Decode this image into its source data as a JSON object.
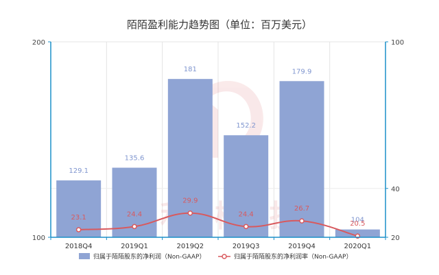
{
  "chart_data": {
    "type": "bar",
    "title": "陌陌盈利能力趋势图（单位：百万美元）",
    "categories": [
      "2018Q4",
      "2019Q1",
      "2019Q2",
      "2019Q3",
      "2019Q4",
      "2020Q1"
    ],
    "series": [
      {
        "name": "归属于陌陌股东的净利润（Non-GAAP）",
        "type": "bar",
        "axis": "left",
        "values": [
          129.1,
          135.6,
          181,
          152.2,
          179.9,
          104
        ],
        "labels": [
          "129.1",
          "135.6",
          "181",
          "152.2",
          "179.9",
          "104"
        ],
        "color": "#8fa4d4"
      },
      {
        "name": "归属于陌陌股东的净利润率（Non-GAAP）",
        "type": "line",
        "axis": "right",
        "smooth": true,
        "values": [
          23.1,
          24.4,
          29.9,
          24.4,
          26.7,
          20.5
        ],
        "labels": [
          "23.1",
          "24.4",
          "29.9",
          "24.4",
          "26.7",
          "20.5"
        ],
        "color": "#d9595d"
      }
    ],
    "y_left": {
      "ylim": [
        100,
        200
      ],
      "ticks": [
        "100",
        "200"
      ]
    },
    "y_right": {
      "ylim": [
        20,
        100
      ],
      "ticks": [
        "20",
        "40",
        "100"
      ]
    },
    "grid": true,
    "legend_position": "bottom",
    "axis_color": "#1a8fc8",
    "watermark_text": "利 椒 投"
  }
}
